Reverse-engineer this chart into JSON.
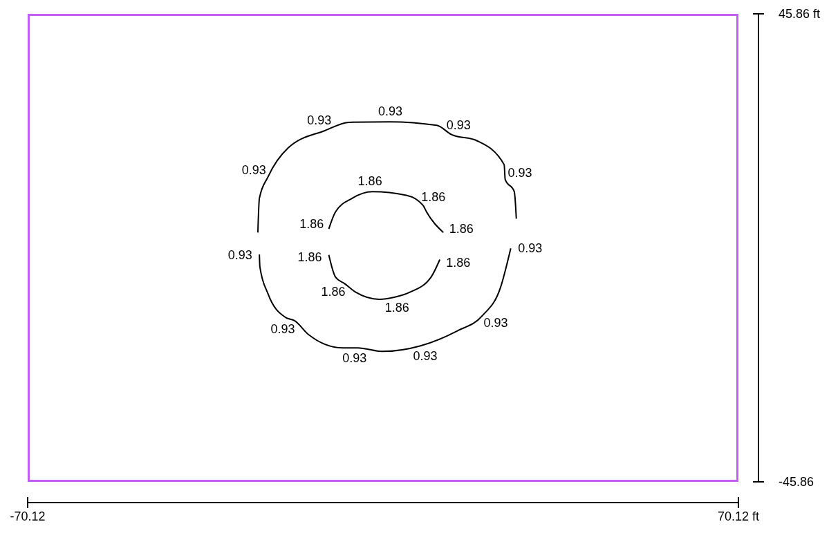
{
  "chart_data": {
    "type": "line",
    "xlim": [
      -70.12,
      70.12
    ],
    "ylim": [
      -45.86,
      45.86
    ],
    "xticks": [
      -70.12,
      {
        "value": 70.12,
        "label": "70.12 ft"
      }
    ],
    "yticks": [
      {
        "value": 45.86,
        "label": "45.86 ft"
      },
      -45.86
    ],
    "marker": "none",
    "line_style": "solid",
    "series": [
      {
        "color": "#000000",
        "x": [
          -24.7,
          -24.4,
          -22.7,
          -18.7,
          -11.4,
          -6.7,
          1.3,
          10.6,
          13.5,
          18.5,
          23.9,
          24.1,
          25.9,
          26.3
        ],
        "values": [
          3.0,
          9.7,
          13.9,
          19.6,
          23.0,
          24.6,
          24.7,
          24.0,
          22.2,
          21.0,
          16.3,
          13.4,
          11.0,
          5.7
        ]
      },
      {
        "color": "#000000",
        "x": [
          -24.4,
          -24.3,
          -22.7,
          -19.3,
          -17.4,
          -14.7,
          -8.0,
          -5.0,
          -0.1,
          7.4,
          14.6,
          19.6,
          23.2,
          25.2
        ],
        "values": [
          -1.3,
          -3.7,
          -9.0,
          -13.6,
          -14.3,
          -17.0,
          -19.6,
          -19.6,
          -20.3,
          -19.2,
          -16.3,
          -13.3,
          -7.7,
          -0.1
        ]
      },
      {
        "color": "#000000",
        "x": [
          -10.7,
          -9.4,
          -6.1,
          -2.1,
          4.6,
          7.9,
          8.6,
          11.9
        ],
        "values": [
          3.7,
          7.0,
          9.7,
          11.0,
          10.3,
          8.3,
          7.0,
          3.0
        ]
      },
      {
        "color": "#000000",
        "x": [
          -10.7,
          -9.4,
          -7.6,
          -5.4,
          -0.7,
          2.2,
          5.3,
          9.5,
          11.2
        ],
        "values": [
          -1.4,
          -5.7,
          -7.0,
          -8.7,
          -10.1,
          -9.7,
          -8.7,
          -5.7,
          -2.3
        ]
      }
    ],
    "annotations": [
      {
        "text": "0.93",
        "x": -11.4,
        "y": 23.0
      },
      {
        "text": "0.93",
        "x": 1.3,
        "y": 24.7
      },
      {
        "text": "0.93",
        "x": 13.5,
        "y": 22.2
      },
      {
        "text": "0.93",
        "x": 24.1,
        "y": 13.4
      },
      {
        "text": "0.93",
        "x": 25.2,
        "y": -0.1
      },
      {
        "text": "0.93",
        "x": 19.6,
        "y": -13.3
      },
      {
        "text": "0.93",
        "x": 7.4,
        "y": -19.2
      },
      {
        "text": "0.93",
        "x": -5.0,
        "y": -19.6
      },
      {
        "text": "0.93",
        "x": -17.4,
        "y": -14.3
      },
      {
        "text": "0.93",
        "x": -24.4,
        "y": -1.3
      },
      {
        "text": "0.93",
        "x": -22.7,
        "y": 13.9
      },
      {
        "text": "1.86",
        "x": -2.1,
        "y": 11.0
      },
      {
        "text": "1.86",
        "x": 7.9,
        "y": 8.3
      },
      {
        "text": "1.86",
        "x": 11.9,
        "y": 3.0
      },
      {
        "text": "1.86",
        "x": 11.2,
        "y": -2.3
      },
      {
        "text": "1.86",
        "x": -10.7,
        "y": 3.7
      },
      {
        "text": "1.86",
        "x": -10.7,
        "y": -1.4
      },
      {
        "text": "1.86",
        "x": -7.6,
        "y": -7.0
      },
      {
        "text": "1.86",
        "x": 2.2,
        "y": -9.7
      }
    ]
  }
}
